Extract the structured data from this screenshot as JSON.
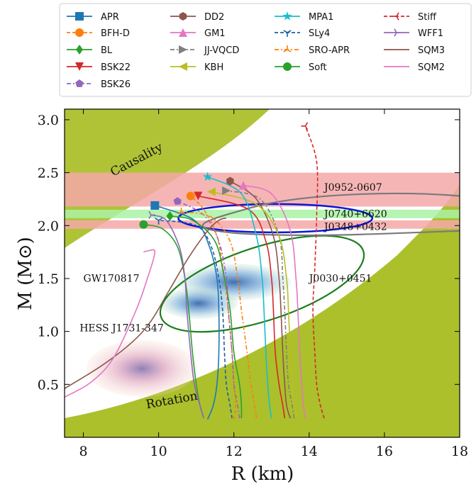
{
  "chart_data": {
    "type": "line",
    "xlabel": "R (km)",
    "ylabel": "M (M⊙)",
    "xlim": [
      7.5,
      18
    ],
    "ylim": [
      0,
      3.1
    ],
    "xticks": [
      "8",
      "10",
      "12",
      "14",
      "16",
      "18"
    ],
    "yticks": [
      "0.5",
      "1.0",
      "1.5",
      "2.0",
      "2.5",
      "3.0"
    ],
    "grid": false,
    "legend_position": "top, outside plot area, 4 columns",
    "colors": {
      "region_fill": "#a2b914",
      "mass_band": "#f4a8a8",
      "green_band": "#a9f2a4",
      "J0740_contour": "#0b16d8",
      "J0030_contour": "#1a7f1a",
      "J0952_contour": "#7a7a7a"
    },
    "regions": [
      {
        "name": "Causality",
        "label": "Causality"
      },
      {
        "name": "Rotation",
        "label": "Rotation"
      }
    ],
    "annotations": [
      {
        "text": "J0952-0607",
        "x": 14.4,
        "y": 2.33
      },
      {
        "text": "J0740+6620",
        "x": 14.4,
        "y": 2.08
      },
      {
        "text": "J0348+0432",
        "x": 14.4,
        "y": 1.96
      },
      {
        "text": "J0030+0451",
        "x": 14.0,
        "y": 1.47
      },
      {
        "text": "GW170817",
        "x": 8.0,
        "y": 1.47
      },
      {
        "text": "HESS J1731-347",
        "x": 7.9,
        "y": 1.0
      }
    ],
    "mass_bands": [
      {
        "name": "J0952-0607",
        "range": [
          2.18,
          2.5
        ],
        "color": "#f4a8a8"
      },
      {
        "name": "J0740+6620",
        "range": [
          2.07,
          2.15
        ],
        "color": "#a9f2a4"
      },
      {
        "name": "J0348+0432",
        "range": [
          1.97,
          2.05
        ],
        "color": "#f4a8a8"
      }
    ],
    "series": [
      {
        "name": "APR",
        "color": "#1f77b4",
        "dash": "solid",
        "marker": "square",
        "points": [
          [
            11.3,
            0.17
          ],
          [
            11.45,
            0.3
          ],
          [
            11.55,
            0.5
          ],
          [
            11.6,
            0.8
          ],
          [
            11.6,
            1.2
          ],
          [
            11.55,
            1.5
          ],
          [
            11.35,
            1.8
          ],
          [
            10.95,
            2.05
          ],
          [
            9.9,
            2.19
          ]
        ]
      },
      {
        "name": "BFH-D",
        "color": "#ff7f0e",
        "dash": "5,3",
        "marker": "circle",
        "points": [
          [
            12.0,
            0.17
          ],
          [
            12.05,
            0.3
          ],
          [
            12.0,
            0.5
          ],
          [
            11.95,
            0.8
          ],
          [
            11.85,
            1.2
          ],
          [
            11.75,
            1.5
          ],
          [
            11.55,
            1.9
          ],
          [
            11.2,
            2.15
          ],
          [
            10.85,
            2.28
          ]
        ]
      },
      {
        "name": "BL",
        "color": "#2ca02c",
        "dash": "solid",
        "marker": "diamond",
        "points": [
          [
            12.2,
            0.18
          ],
          [
            12.2,
            0.3
          ],
          [
            12.15,
            0.5
          ],
          [
            12.0,
            0.8
          ],
          [
            11.9,
            1.2
          ],
          [
            11.75,
            1.5
          ],
          [
            11.5,
            1.85
          ],
          [
            10.9,
            2.05
          ],
          [
            10.3,
            2.09
          ]
        ]
      },
      {
        "name": "BSK22",
        "color": "#d62728",
        "dash": "solid",
        "marker": "triangle-down",
        "points": [
          [
            13.35,
            0.18
          ],
          [
            13.3,
            0.3
          ],
          [
            13.2,
            0.5
          ],
          [
            13.1,
            0.8
          ],
          [
            13.05,
            1.2
          ],
          [
            13.0,
            1.5
          ],
          [
            12.85,
            1.85
          ],
          [
            12.4,
            2.15
          ],
          [
            11.05,
            2.28
          ]
        ]
      },
      {
        "name": "BSK26",
        "color": "#9467bd",
        "dash": "6,3,2,3",
        "marker": "pentagon",
        "points": [
          [
            12.15,
            0.18
          ],
          [
            12.1,
            0.3
          ],
          [
            12.0,
            0.5
          ],
          [
            11.95,
            0.8
          ],
          [
            11.85,
            1.2
          ],
          [
            11.8,
            1.5
          ],
          [
            11.6,
            1.85
          ],
          [
            11.2,
            2.1
          ],
          [
            10.5,
            2.23
          ]
        ]
      },
      {
        "name": "DD2",
        "color": "#8c564b",
        "dash": "solid",
        "marker": "hexagon",
        "points": [
          [
            13.5,
            0.18
          ],
          [
            13.4,
            0.3
          ],
          [
            13.35,
            0.5
          ],
          [
            13.3,
            0.8
          ],
          [
            13.25,
            1.2
          ],
          [
            13.2,
            1.5
          ],
          [
            13.05,
            1.9
          ],
          [
            12.6,
            2.25
          ],
          [
            11.9,
            2.42
          ]
        ]
      },
      {
        "name": "GM1",
        "color": "#e377c2",
        "dash": "solid",
        "marker": "triangle-up",
        "points": [
          [
            13.9,
            0.18
          ],
          [
            13.85,
            0.3
          ],
          [
            13.8,
            0.5
          ],
          [
            13.75,
            0.8
          ],
          [
            13.7,
            1.2
          ],
          [
            13.65,
            1.5
          ],
          [
            13.5,
            1.95
          ],
          [
            13.0,
            2.3
          ],
          [
            12.25,
            2.38
          ]
        ]
      },
      {
        "name": "JJ-VQCD",
        "color": "#7f7f7f",
        "dash": "6,3,2,3",
        "marker": "triangle-right",
        "points": [
          [
            13.6,
            0.18
          ],
          [
            13.55,
            0.3
          ],
          [
            13.45,
            0.5
          ],
          [
            13.4,
            0.8
          ],
          [
            13.35,
            1.2
          ],
          [
            13.3,
            1.5
          ],
          [
            13.2,
            1.9
          ],
          [
            12.7,
            2.25
          ],
          [
            11.8,
            2.33
          ]
        ]
      },
      {
        "name": "KBH",
        "color": "#bcbd22",
        "dash": "solid",
        "marker": "triangle-left",
        "points": [
          [
            13.7,
            0.18
          ],
          [
            13.6,
            0.3
          ],
          [
            13.55,
            0.5
          ],
          [
            13.5,
            0.8
          ],
          [
            13.45,
            1.2
          ],
          [
            13.4,
            1.5
          ],
          [
            13.2,
            1.9
          ],
          [
            12.6,
            2.2
          ],
          [
            11.4,
            2.32
          ]
        ]
      },
      {
        "name": "MPA1",
        "color": "#17becf",
        "dash": "solid",
        "marker": "star",
        "points": [
          [
            13.0,
            0.18
          ],
          [
            12.95,
            0.3
          ],
          [
            12.9,
            0.5
          ],
          [
            12.85,
            0.8
          ],
          [
            12.8,
            1.2
          ],
          [
            12.75,
            1.5
          ],
          [
            12.6,
            1.9
          ],
          [
            12.2,
            2.3
          ],
          [
            11.3,
            2.46
          ]
        ]
      },
      {
        "name": "SLy4",
        "color": "#1f5f9f",
        "dash": "5,3",
        "marker": "tri-down",
        "points": [
          [
            11.95,
            0.18
          ],
          [
            11.9,
            0.3
          ],
          [
            11.8,
            0.5
          ],
          [
            11.75,
            0.8
          ],
          [
            11.7,
            1.2
          ],
          [
            11.6,
            1.5
          ],
          [
            11.4,
            1.8
          ],
          [
            11.0,
            2.0
          ],
          [
            10.0,
            2.05
          ]
        ]
      },
      {
        "name": "SRO-APR",
        "color": "#ff7f0e",
        "dash": "6,3,2,3",
        "marker": "tri-up",
        "points": [
          [
            12.6,
            0.18
          ],
          [
            12.55,
            0.3
          ],
          [
            12.45,
            0.5
          ],
          [
            12.35,
            0.8
          ],
          [
            12.2,
            1.2
          ],
          [
            12.1,
            1.5
          ],
          [
            11.9,
            1.85
          ],
          [
            11.4,
            2.08
          ],
          [
            10.6,
            2.13
          ]
        ]
      },
      {
        "name": "Soft",
        "color": "#2ca02c",
        "dash": "solid",
        "marker": "circle",
        "points": [
          [
            11.2,
            0.18
          ],
          [
            11.1,
            0.3
          ],
          [
            11.0,
            0.5
          ],
          [
            10.9,
            0.8
          ],
          [
            10.8,
            1.2
          ],
          [
            10.7,
            1.5
          ],
          [
            10.5,
            1.8
          ],
          [
            10.1,
            1.97
          ],
          [
            9.6,
            2.01
          ]
        ]
      },
      {
        "name": "Stiff",
        "color": "#d62728",
        "dash": "5,3",
        "marker": "tri-left",
        "points": [
          [
            14.4,
            0.18
          ],
          [
            14.3,
            0.3
          ],
          [
            14.2,
            0.5
          ],
          [
            14.15,
            0.8
          ],
          [
            14.1,
            1.2
          ],
          [
            14.15,
            1.6
          ],
          [
            14.2,
            2.1
          ],
          [
            14.2,
            2.6
          ],
          [
            13.9,
            2.94
          ]
        ]
      },
      {
        "name": "WFF1",
        "color": "#9467bd",
        "dash": "solid",
        "marker": "tri-right",
        "points": [
          [
            11.2,
            0.18
          ],
          [
            11.1,
            0.3
          ],
          [
            10.95,
            0.5
          ],
          [
            10.85,
            0.8
          ],
          [
            10.75,
            1.2
          ],
          [
            10.7,
            1.5
          ],
          [
            10.55,
            1.8
          ],
          [
            10.2,
            2.05
          ],
          [
            9.8,
            2.1
          ]
        ]
      },
      {
        "name": "SQM3",
        "color": "#8c564b",
        "dash": "solid",
        "marker": "none",
        "points": [
          [
            7.5,
            0.46
          ],
          [
            8.5,
            0.68
          ],
          [
            9.3,
            0.9
          ],
          [
            9.8,
            1.1
          ],
          [
            10.3,
            1.4
          ],
          [
            10.8,
            1.7
          ],
          [
            11.3,
            1.95
          ],
          [
            11.6,
            2.05
          ],
          [
            11.8,
            2.07
          ]
        ]
      },
      {
        "name": "SQM2",
        "color": "#e377c2",
        "dash": "solid",
        "marker": "none",
        "points": [
          [
            7.5,
            0.38
          ],
          [
            8.2,
            0.52
          ],
          [
            8.8,
            0.75
          ],
          [
            9.4,
            1.2
          ],
          [
            9.7,
            1.5
          ],
          [
            9.9,
            1.75
          ],
          [
            9.7,
            1.76
          ],
          [
            9.6,
            1.75
          ]
        ]
      }
    ]
  }
}
